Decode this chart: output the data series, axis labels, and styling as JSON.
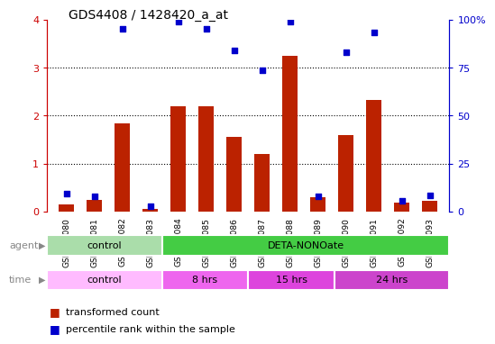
{
  "title": "GDS4408 / 1428420_a_at",
  "samples": [
    "GSM549080",
    "GSM549081",
    "GSM549082",
    "GSM549083",
    "GSM549084",
    "GSM549085",
    "GSM549086",
    "GSM549087",
    "GSM549088",
    "GSM549089",
    "GSM549090",
    "GSM549091",
    "GSM549092",
    "GSM549093"
  ],
  "red_values": [
    0.15,
    0.25,
    1.83,
    0.05,
    2.2,
    2.2,
    1.55,
    1.2,
    3.25,
    0.3,
    1.6,
    2.33,
    0.18,
    0.22
  ],
  "blue_values": [
    9.5,
    8.0,
    95.0,
    3.0,
    99.0,
    95.0,
    84.0,
    73.5,
    99.0,
    8.0,
    83.0,
    93.5,
    5.5,
    8.5
  ],
  "ylim_left": [
    0,
    4
  ],
  "ylim_right": [
    0,
    100
  ],
  "yticks_left": [
    0,
    1,
    2,
    3,
    4
  ],
  "ytick_labels_left": [
    "0",
    "1",
    "2",
    "3",
    "4"
  ],
  "yticks_right": [
    0,
    25,
    50,
    75,
    100
  ],
  "ytick_labels_right": [
    "0",
    "25",
    "50",
    "75",
    "100%"
  ],
  "bar_color": "#bb2200",
  "dot_color": "#0000cc",
  "grid_color": "#000000",
  "plot_bg_color": "#ffffff",
  "fig_bg_color": "#ffffff",
  "agent_labels": [
    {
      "text": "control",
      "start": 0,
      "end": 3,
      "color": "#aaddaa"
    },
    {
      "text": "DETA-NONOate",
      "start": 4,
      "end": 13,
      "color": "#44cc44"
    }
  ],
  "time_labels": [
    {
      "text": "control",
      "start": 0,
      "end": 3,
      "color": "#ffbbff"
    },
    {
      "text": "8 hrs",
      "start": 4,
      "end": 6,
      "color": "#ee66ee"
    },
    {
      "text": "15 hrs",
      "start": 7,
      "end": 9,
      "color": "#dd44dd"
    },
    {
      "text": "24 hrs",
      "start": 10,
      "end": 13,
      "color": "#cc44cc"
    }
  ],
  "legend_red": "transformed count",
  "legend_blue": "percentile rank within the sample",
  "left_axis_color": "#cc0000",
  "right_axis_color": "#0000cc",
  "label_color": "#888888",
  "bar_width": 0.55
}
